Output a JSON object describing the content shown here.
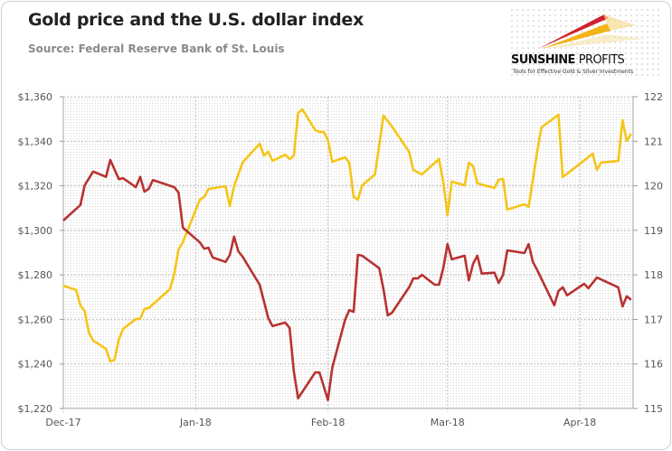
{
  "header": {
    "title": "Gold price and the U.S. dollar index",
    "subtitle": "Source: Federal Reserve Bank of St. Louis"
  },
  "logo": {
    "name_bold": "SUNSHINE",
    "name_light": "PROFITS",
    "tagline": "Tools for Effective Gold & Silver Investments",
    "colors": [
      "#d0202e",
      "#f2b417"
    ]
  },
  "chart_data": {
    "type": "line",
    "title": "Gold price and the U.S. dollar index",
    "grid": true,
    "x_range": [
      "2017-12-01",
      "2018-04-13"
    ],
    "x_ticks": [
      {
        "date": "2017-12-01",
        "label": "Dec-17"
      },
      {
        "date": "2018-01-01",
        "label": "Jan-18"
      },
      {
        "date": "2018-02-01",
        "label": "Feb-18"
      },
      {
        "date": "2018-03-01",
        "label": "Mar-18"
      },
      {
        "date": "2018-04-01",
        "label": "Apr-18"
      }
    ],
    "y_left": {
      "range": [
        1220,
        1360
      ],
      "ticks": [
        "$1,220",
        "$1,240",
        "$1,260",
        "$1,280",
        "$1,300",
        "$1,320",
        "$1,340",
        "$1,360"
      ],
      "values": [
        1220,
        1240,
        1260,
        1280,
        1300,
        1320,
        1340,
        1360
      ]
    },
    "y_right": {
      "range": [
        115,
        122
      ],
      "ticks": [
        "115",
        "116",
        "117",
        "118",
        "119",
        "120",
        "121",
        "122"
      ],
      "values": [
        115,
        116,
        117,
        118,
        119,
        120,
        121,
        122
      ]
    },
    "series": [
      {
        "key": "gold",
        "axis": "left",
        "color": "#f5c518",
        "points": [
          [
            "2017-12-01",
            1275.2
          ],
          [
            "2017-12-04",
            1273.2
          ],
          [
            "2017-12-05",
            1266.3
          ],
          [
            "2017-12-06",
            1263.8
          ],
          [
            "2017-12-07",
            1254.1
          ],
          [
            "2017-12-08",
            1250.5
          ],
          [
            "2017-12-11",
            1246.8
          ],
          [
            "2017-12-12",
            1241.1
          ],
          [
            "2017-12-13",
            1241.9
          ],
          [
            "2017-12-14",
            1250.9
          ],
          [
            "2017-12-15",
            1255.7
          ],
          [
            "2017-12-18",
            1260.2
          ],
          [
            "2017-12-19",
            1260.2
          ],
          [
            "2017-12-20",
            1264.7
          ],
          [
            "2017-12-21",
            1265.1
          ],
          [
            "2017-12-26",
            1273.6
          ],
          [
            "2017-12-27",
            1280.5
          ],
          [
            "2017-12-28",
            1291.4
          ],
          [
            "2017-12-29",
            1294.7
          ],
          [
            "2018-01-02",
            1313.8
          ],
          [
            "2018-01-03",
            1315.0
          ],
          [
            "2018-01-04",
            1318.6
          ],
          [
            "2018-01-08",
            1319.8
          ],
          [
            "2018-01-09",
            1310.9
          ],
          [
            "2018-01-10",
            1319.8
          ],
          [
            "2018-01-12",
            1330.4
          ],
          [
            "2018-01-16",
            1338.9
          ],
          [
            "2018-01-17",
            1333.6
          ],
          [
            "2018-01-18",
            1335.3
          ],
          [
            "2018-01-19",
            1331.2
          ],
          [
            "2018-01-22",
            1334.0
          ],
          [
            "2018-01-23",
            1332.0
          ],
          [
            "2018-01-24",
            1333.6
          ],
          [
            "2018-01-25",
            1352.7
          ],
          [
            "2018-01-26",
            1354.3
          ],
          [
            "2018-01-29",
            1345.0
          ],
          [
            "2018-01-30",
            1344.2
          ],
          [
            "2018-01-31",
            1344.2
          ],
          [
            "2018-02-01",
            1340.5
          ],
          [
            "2018-02-02",
            1330.8
          ],
          [
            "2018-02-05",
            1332.8
          ],
          [
            "2018-02-06",
            1330.4
          ],
          [
            "2018-02-07",
            1315.0
          ],
          [
            "2018-02-08",
            1313.8
          ],
          [
            "2018-02-09",
            1320.2
          ],
          [
            "2018-02-12",
            1325.1
          ],
          [
            "2018-02-14",
            1351.5
          ],
          [
            "2018-02-16",
            1346.6
          ],
          [
            "2018-02-20",
            1335.3
          ],
          [
            "2018-02-21",
            1327.1
          ],
          [
            "2018-02-23",
            1325.1
          ],
          [
            "2018-02-27",
            1332.0
          ],
          [
            "2018-02-28",
            1321.9
          ],
          [
            "2018-03-01",
            1306.9
          ],
          [
            "2018-03-02",
            1321.9
          ],
          [
            "2018-03-05",
            1320.2
          ],
          [
            "2018-03-06",
            1330.4
          ],
          [
            "2018-03-07",
            1328.8
          ],
          [
            "2018-03-08",
            1321.1
          ],
          [
            "2018-03-12",
            1319.0
          ],
          [
            "2018-03-13",
            1322.7
          ],
          [
            "2018-03-14",
            1323.1
          ],
          [
            "2018-03-15",
            1309.3
          ],
          [
            "2018-03-19",
            1311.7
          ],
          [
            "2018-03-20",
            1310.5
          ],
          [
            "2018-03-22",
            1335.3
          ],
          [
            "2018-03-23",
            1346.2
          ],
          [
            "2018-03-27",
            1351.9
          ],
          [
            "2018-03-28",
            1323.9
          ],
          [
            "2018-04-04",
            1334.4
          ],
          [
            "2018-04-05",
            1327.1
          ],
          [
            "2018-04-06",
            1330.4
          ],
          [
            "2018-04-10",
            1331.2
          ],
          [
            "2018-04-11",
            1349.5
          ],
          [
            "2018-04-12",
            1340.1
          ],
          [
            "2018-04-13",
            1343.4
          ]
        ]
      },
      {
        "key": "usd",
        "axis": "right",
        "color": "#b83232",
        "points": [
          [
            "2017-12-01",
            119.22
          ],
          [
            "2017-12-05",
            119.57
          ],
          [
            "2017-12-06",
            120.01
          ],
          [
            "2017-12-08",
            120.32
          ],
          [
            "2017-12-11",
            120.2
          ],
          [
            "2017-12-12",
            120.58
          ],
          [
            "2017-12-14",
            120.15
          ],
          [
            "2017-12-15",
            120.17
          ],
          [
            "2017-12-18",
            119.97
          ],
          [
            "2017-12-19",
            120.2
          ],
          [
            "2017-12-20",
            119.87
          ],
          [
            "2017-12-21",
            119.93
          ],
          [
            "2017-12-22",
            120.13
          ],
          [
            "2017-12-27",
            119.97
          ],
          [
            "2017-12-28",
            119.85
          ],
          [
            "2017-12-29",
            119.06
          ],
          [
            "2018-01-02",
            118.73
          ],
          [
            "2018-01-03",
            118.59
          ],
          [
            "2018-01-04",
            118.61
          ],
          [
            "2018-01-05",
            118.39
          ],
          [
            "2018-01-08",
            118.29
          ],
          [
            "2018-01-09",
            118.45
          ],
          [
            "2018-01-10",
            118.86
          ],
          [
            "2018-01-11",
            118.53
          ],
          [
            "2018-01-12",
            118.41
          ],
          [
            "2018-01-16",
            117.78
          ],
          [
            "2018-01-18",
            117.03
          ],
          [
            "2018-01-19",
            116.85
          ],
          [
            "2018-01-22",
            116.93
          ],
          [
            "2018-01-23",
            116.81
          ],
          [
            "2018-01-24",
            115.83
          ],
          [
            "2018-01-25",
            115.23
          ],
          [
            "2018-01-29",
            115.81
          ],
          [
            "2018-01-30",
            115.81
          ],
          [
            "2018-02-01",
            115.19
          ],
          [
            "2018-02-02",
            115.92
          ],
          [
            "2018-02-05",
            116.99
          ],
          [
            "2018-02-06",
            117.21
          ],
          [
            "2018-02-07",
            117.17
          ],
          [
            "2018-02-08",
            118.45
          ],
          [
            "2018-02-09",
            118.43
          ],
          [
            "2018-02-13",
            118.15
          ],
          [
            "2018-02-14",
            117.68
          ],
          [
            "2018-02-15",
            117.09
          ],
          [
            "2018-02-16",
            117.15
          ],
          [
            "2018-02-20",
            117.72
          ],
          [
            "2018-02-21",
            117.92
          ],
          [
            "2018-02-22",
            117.92
          ],
          [
            "2018-02-23",
            118.0
          ],
          [
            "2018-02-26",
            117.78
          ],
          [
            "2018-02-27",
            117.78
          ],
          [
            "2018-02-28",
            118.15
          ],
          [
            "2018-03-01",
            118.69
          ],
          [
            "2018-03-02",
            118.35
          ],
          [
            "2018-03-05",
            118.43
          ],
          [
            "2018-03-06",
            117.88
          ],
          [
            "2018-03-07",
            118.25
          ],
          [
            "2018-03-08",
            118.43
          ],
          [
            "2018-03-09",
            118.03
          ],
          [
            "2018-03-12",
            118.05
          ],
          [
            "2018-03-13",
            117.82
          ],
          [
            "2018-03-14",
            118.0
          ],
          [
            "2018-03-15",
            118.55
          ],
          [
            "2018-03-19",
            118.49
          ],
          [
            "2018-03-20",
            118.69
          ],
          [
            "2018-03-21",
            118.29
          ],
          [
            "2018-03-22",
            118.11
          ],
          [
            "2018-03-26",
            117.32
          ],
          [
            "2018-03-27",
            117.64
          ],
          [
            "2018-03-28",
            117.72
          ],
          [
            "2018-03-29",
            117.54
          ],
          [
            "2018-04-02",
            117.8
          ],
          [
            "2018-04-03",
            117.7
          ],
          [
            "2018-04-05",
            117.94
          ],
          [
            "2018-04-10",
            117.72
          ],
          [
            "2018-04-11",
            117.29
          ],
          [
            "2018-04-12",
            117.52
          ],
          [
            "2018-04-13",
            117.44
          ]
        ]
      }
    ]
  }
}
